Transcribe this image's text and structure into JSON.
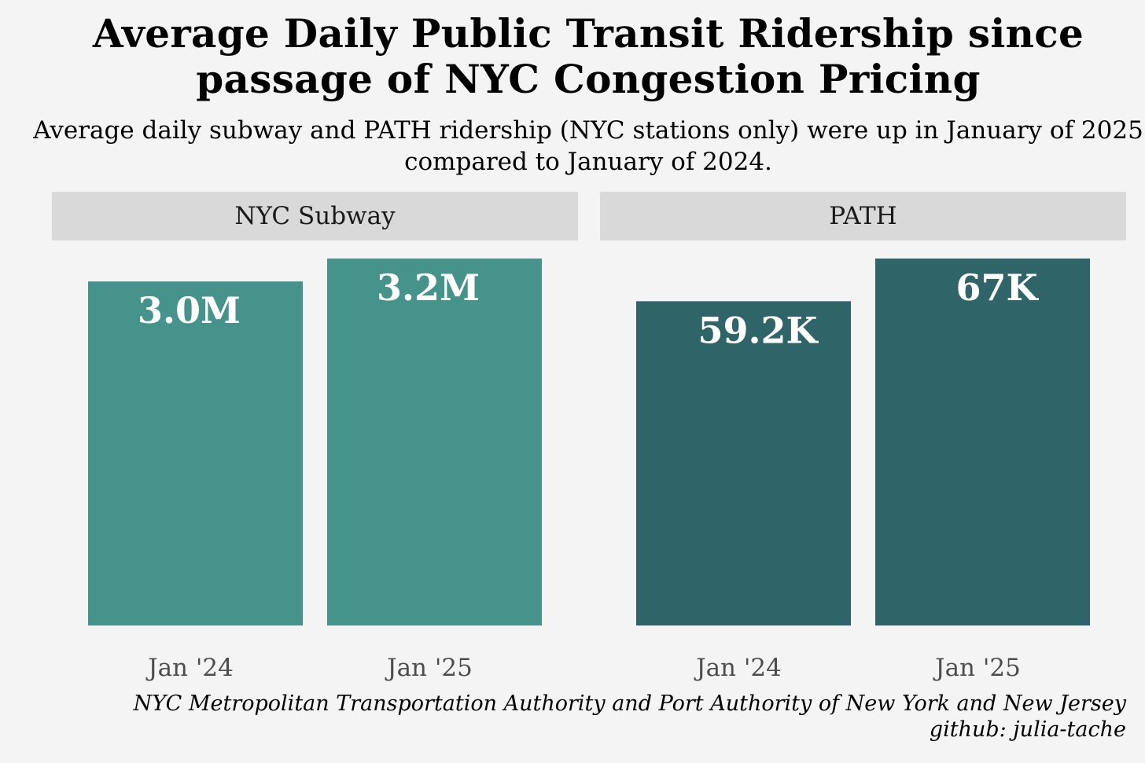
{
  "chart_data": {
    "type": "bar",
    "title": "Average Daily Public Transit Ridership since passage of NYC Congestion Pricing",
    "subtitle": "Average daily subway and PATH ridership (NYC stations only) were up in January of 2025 compared to January of 2024.",
    "panels": [
      {
        "name": "NYC Subway",
        "categories": [
          "Jan '24",
          "Jan '25"
        ],
        "values": [
          3000000,
          3200000
        ],
        "labels": [
          "3.0M",
          "3.2M"
        ],
        "ylim": [
          0,
          3200000
        ],
        "color": "#45938a"
      },
      {
        "name": "PATH",
        "categories": [
          "Jan '24",
          "Jan '25"
        ],
        "values": [
          59200,
          67000
        ],
        "labels": [
          "59.2K",
          "67K"
        ],
        "ylim": [
          0,
          67000
        ],
        "color": "#2f6468"
      }
    ],
    "grid": false,
    "legend": "none",
    "source": "NYC Metropolitan Transportation Authority and Port Authority of New York and New Jersey",
    "credit": "github: julia-tache"
  }
}
